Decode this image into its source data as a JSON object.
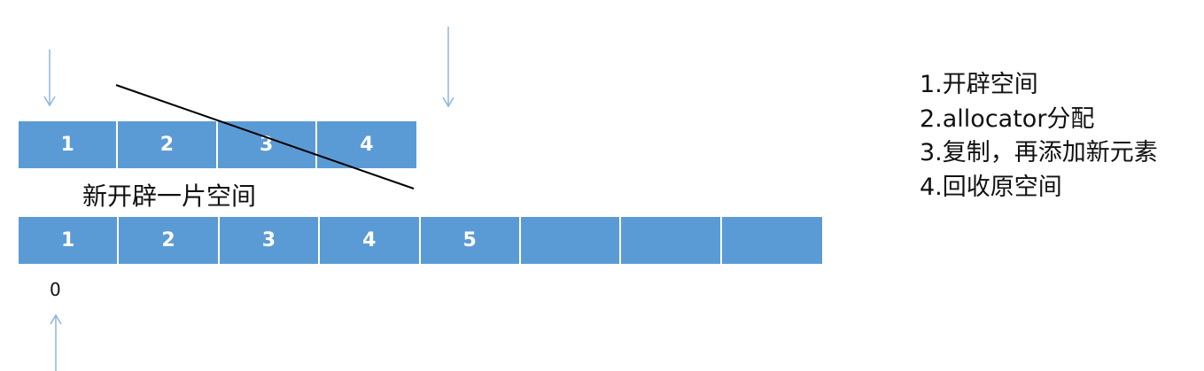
{
  "colors": {
    "cell_fill": "#5b9bd5",
    "arrow": "#8fb4dd",
    "strike_line": "#000000"
  },
  "old_array": {
    "cells": [
      "1",
      "2",
      "3",
      "4"
    ]
  },
  "new_space_label": "新开辟一片空间",
  "new_array": {
    "cells": [
      "1",
      "2",
      "3",
      "4",
      "5",
      "",
      "",
      ""
    ]
  },
  "index_label": "0",
  "steps": [
    "1.开辟空间",
    "2.allocator分配",
    "3.复制，再添加新元素",
    "4.回收原空间"
  ],
  "icons": [
    "arrow-down-icon",
    "arrow-down-icon",
    "arrow-up-icon"
  ]
}
